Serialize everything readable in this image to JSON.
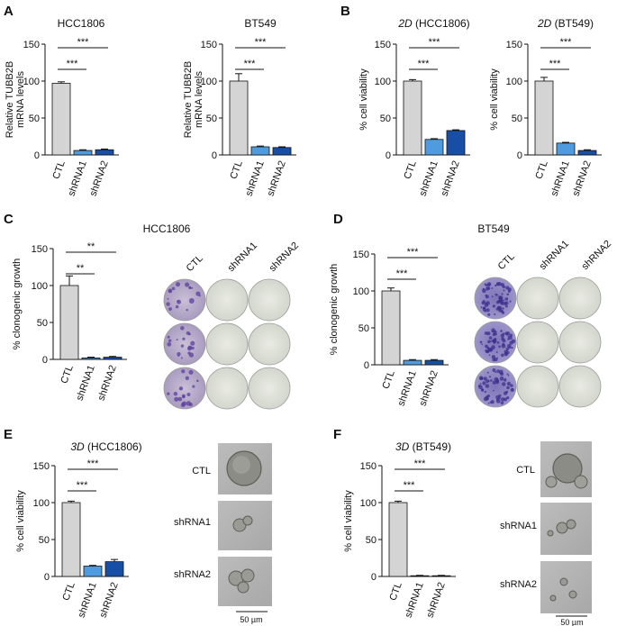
{
  "panel_labels": {
    "A": "A",
    "B": "B",
    "C": "C",
    "D": "D",
    "E": "E",
    "F": "F"
  },
  "colors": {
    "CTL": "#d4d4d4",
    "shRNA1": "#4f9be0",
    "shRNA2": "#174fa6"
  },
  "photo_labels": {
    "C": {
      "cols": [
        "CTL",
        "shRNA1",
        "shRNA2"
      ]
    },
    "D": {
      "cols": [
        "CTL",
        "shRNA1",
        "shRNA2"
      ]
    },
    "E": {
      "rows": [
        "CTL",
        "shRNA1",
        "shRNA2"
      ],
      "scalebar": "50 µm"
    },
    "F": {
      "rows": [
        "CTL",
        "shRNA1",
        "shRNA2"
      ],
      "scalebar": "50 µm"
    }
  },
  "chart_data": [
    {
      "id": "A1",
      "type": "bar",
      "title": "HCC1806",
      "title_prefix": "",
      "ylabel": "Relative TUBB2B\nmRNA levels",
      "categories": [
        "CTL",
        "shRNA1",
        "shRNA2"
      ],
      "values": [
        97,
        6,
        7
      ],
      "errors": [
        2,
        1,
        1
      ],
      "ylim": [
        0,
        150
      ],
      "yticks": [
        0,
        50,
        100,
        150
      ],
      "significance": [
        {
          "from": 0,
          "to": 1,
          "label": "***"
        },
        {
          "from": 0,
          "to": 2,
          "label": "***"
        }
      ]
    },
    {
      "id": "A2",
      "type": "bar",
      "title": "BT549",
      "title_prefix": "",
      "ylabel": "Relative TUBB2B\nmRNA levels",
      "categories": [
        "CTL",
        "shRNA1",
        "shRNA2"
      ],
      "values": [
        100,
        11,
        10
      ],
      "errors": [
        10,
        1,
        1
      ],
      "ylim": [
        0,
        150
      ],
      "yticks": [
        0,
        50,
        100,
        150
      ],
      "significance": [
        {
          "from": 0,
          "to": 1,
          "label": "***"
        },
        {
          "from": 0,
          "to": 2,
          "label": "***"
        }
      ]
    },
    {
      "id": "B1",
      "type": "bar",
      "title": " (HCC1806)",
      "title_prefix": "2D",
      "ylabel": "% cell viability",
      "categories": [
        "CTL",
        "shRNA1",
        "shRNA2"
      ],
      "values": [
        100,
        21,
        33
      ],
      "errors": [
        2,
        1,
        1
      ],
      "ylim": [
        0,
        150
      ],
      "yticks": [
        0,
        50,
        100,
        150
      ],
      "significance": [
        {
          "from": 0,
          "to": 1,
          "label": "***"
        },
        {
          "from": 0,
          "to": 2,
          "label": "***"
        }
      ]
    },
    {
      "id": "B2",
      "type": "bar",
      "title": " (BT549)",
      "title_prefix": "2D",
      "ylabel": "% cell viability",
      "categories": [
        "CTL",
        "shRNA1",
        "shRNA2"
      ],
      "values": [
        100,
        16,
        6
      ],
      "errors": [
        5,
        1,
        1
      ],
      "ylim": [
        0,
        150
      ],
      "yticks": [
        0,
        50,
        100,
        150
      ],
      "significance": [
        {
          "from": 0,
          "to": 1,
          "label": "***"
        },
        {
          "from": 0,
          "to": 2,
          "label": "***"
        }
      ]
    },
    {
      "id": "C",
      "type": "bar",
      "title": "HCC1806",
      "title_prefix": "",
      "ylabel": "% clonogenic growth",
      "categories": [
        "CTL",
        "shRNA1",
        "shRNA2"
      ],
      "values": [
        100,
        2,
        3
      ],
      "errors": [
        13,
        1,
        1
      ],
      "ylim": [
        0,
        150
      ],
      "yticks": [
        0,
        50,
        100,
        150
      ],
      "significance": [
        {
          "from": 0,
          "to": 1,
          "label": "**"
        },
        {
          "from": 0,
          "to": 2,
          "label": "**"
        }
      ]
    },
    {
      "id": "D",
      "type": "bar",
      "title": "BT549",
      "title_prefix": "",
      "ylabel": "% clonogenic growth",
      "categories": [
        "CTL",
        "shRNA1",
        "shRNA2"
      ],
      "values": [
        100,
        6,
        6
      ],
      "errors": [
        4,
        1,
        1
      ],
      "ylim": [
        0,
        150
      ],
      "yticks": [
        0,
        50,
        100,
        150
      ],
      "significance": [
        {
          "from": 0,
          "to": 1,
          "label": "***"
        },
        {
          "from": 0,
          "to": 2,
          "label": "***"
        }
      ]
    },
    {
      "id": "E",
      "type": "bar",
      "title": " (HCC1806)",
      "title_prefix": "3D",
      "ylabel": "% cell viability",
      "categories": [
        "CTL",
        "shRNA1",
        "shRNA2"
      ],
      "values": [
        100,
        14,
        20
      ],
      "errors": [
        2,
        1,
        3
      ],
      "ylim": [
        0,
        150
      ],
      "yticks": [
        0,
        50,
        100,
        150
      ],
      "significance": [
        {
          "from": 0,
          "to": 1,
          "label": "***"
        },
        {
          "from": 0,
          "to": 2,
          "label": "***"
        }
      ]
    },
    {
      "id": "F",
      "type": "bar",
      "title": " (BT549)",
      "title_prefix": "3D",
      "ylabel": "% cell viability",
      "categories": [
        "CTL",
        "shRNA1",
        "shRNA2"
      ],
      "values": [
        100,
        1,
        1
      ],
      "errors": [
        2,
        0.5,
        0.5
      ],
      "ylim": [
        0,
        150
      ],
      "yticks": [
        0,
        50,
        100,
        150
      ],
      "significance": [
        {
          "from": 0,
          "to": 1,
          "label": "***"
        },
        {
          "from": 0,
          "to": 2,
          "label": "***"
        }
      ]
    }
  ]
}
